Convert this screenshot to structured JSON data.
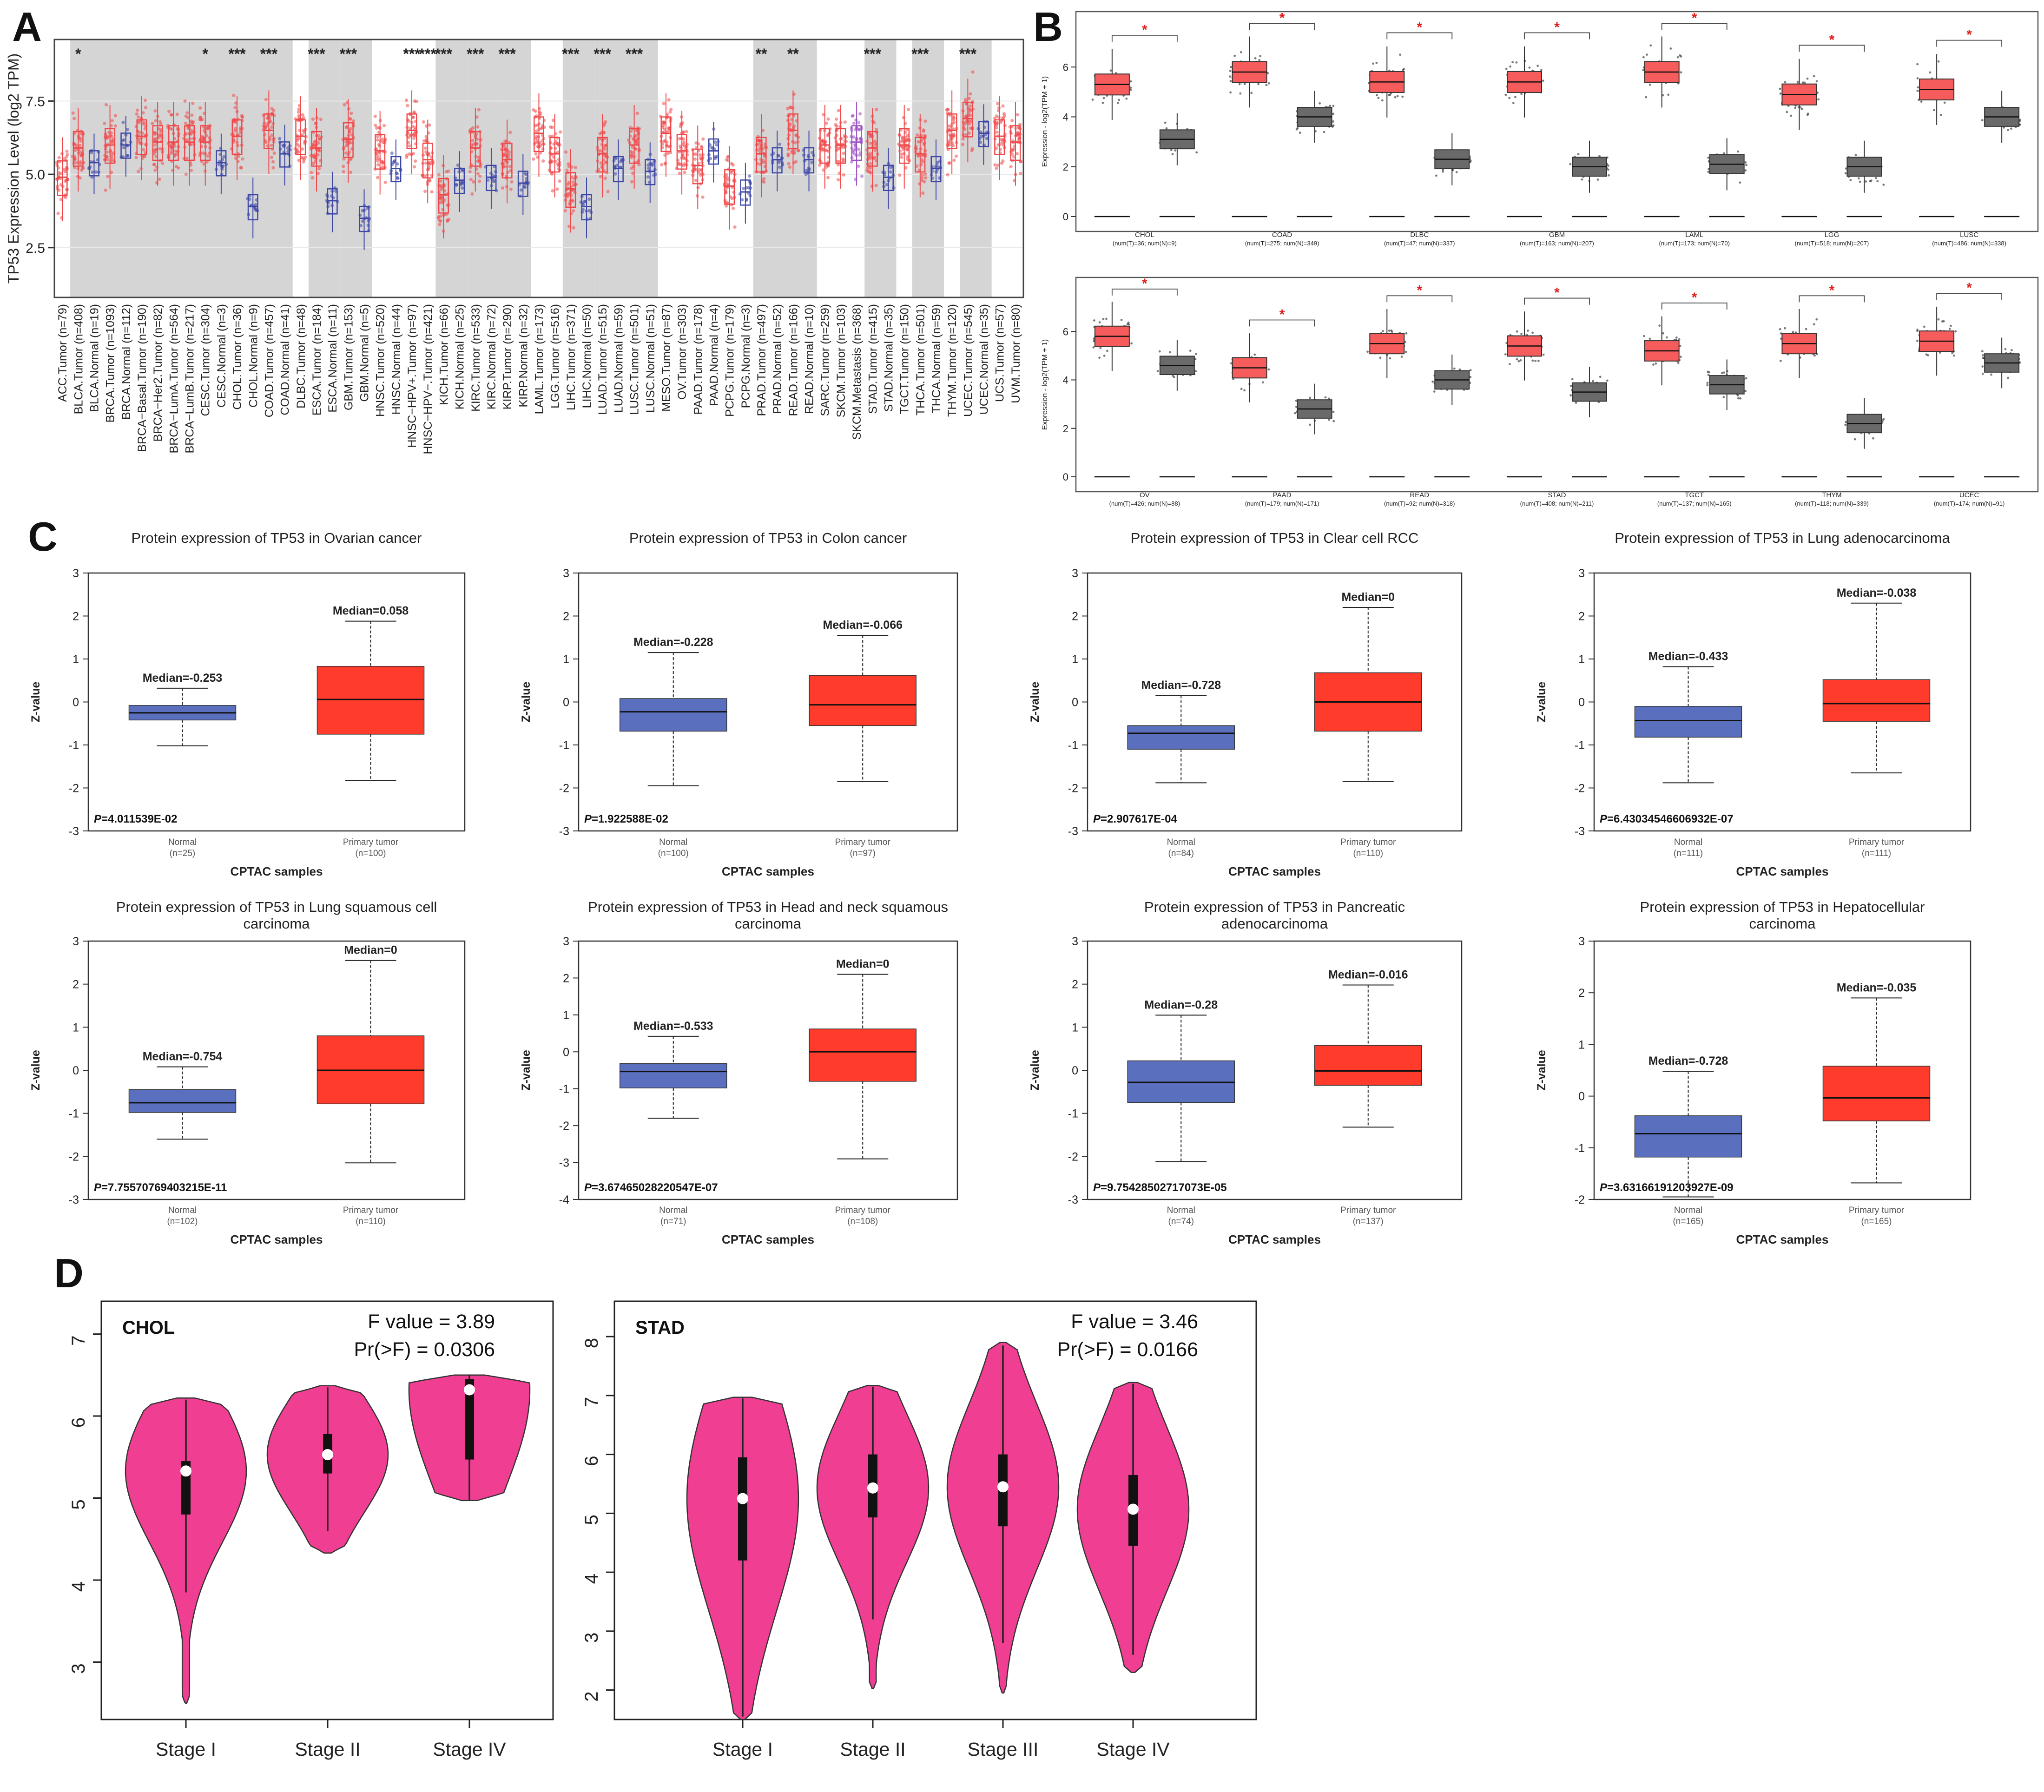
{
  "colors": {
    "tumor": "#f0484a",
    "normal": "#3c46a6",
    "gepiaTumor": "#f65c5c",
    "gepiaNormal": "#6a6a6a",
    "metastasis": "#9a4fc2",
    "cptacNormal": "#5a6fbe",
    "cptacTumor": "#ff3b2c",
    "violin": "#f03e92",
    "shade": "#d5d5d5",
    "sig": "#e02020"
  },
  "panels": {
    "A": {
      "label": "A",
      "chart_data": {
        "type": "box",
        "title": "",
        "ylabel": "TP53 Expression Level (log2 TPM)",
        "ylim": [
          0.8,
          9.6
        ],
        "yticks": [
          {
            "v": 2.5,
            "t": "2.5"
          },
          {
            "v": 5.0,
            "t": "5.0"
          },
          {
            "v": 7.5,
            "t": "7.5"
          }
        ],
        "categories": [
          "ACC.Tumor (n=79)",
          "BLCA.Tumor (n=408)",
          "BLCA.Normal (n=19)",
          "BRCA.Tumor (n=1093)",
          "BRCA.Normal (n=112)",
          "BRCA−Basal.Tumor (n=190)",
          "BRCA−Her2.Tumor (n=82)",
          "BRCA−LumA.Tumor (n=564)",
          "BRCA−LumB.Tumor (n=217)",
          "CESC.Tumor (n=304)",
          "CESC.Normal (n=3)",
          "CHOL.Tumor (n=36)",
          "CHOL.Normal (n=9)",
          "COAD.Tumor (n=457)",
          "COAD.Normal (n=41)",
          "DLBC.Tumor (n=48)",
          "ESCA.Tumor (n=184)",
          "ESCA.Normal (n=11)",
          "GBM.Tumor (n=153)",
          "GBM.Normal (n=5)",
          "HNSC.Tumor (n=520)",
          "HNSC.Normal (n=44)",
          "HNSC−HPV+.Tumor (n=97)",
          "HNSC−HPV−.Tumor (n=421)",
          "KICH.Tumor (n=66)",
          "KICH.Normal (n=25)",
          "KIRC.Tumor (n=533)",
          "KIRC.Normal (n=72)",
          "KIRP.Tumor (n=290)",
          "KIRP.Normal (n=32)",
          "LAML.Tumor (n=173)",
          "LGG.Tumor (n=516)",
          "LIHC.Tumor (n=371)",
          "LIHC.Normal (n=50)",
          "LUAD.Tumor (n=515)",
          "LUAD.Normal (n=59)",
          "LUSC.Tumor (n=501)",
          "LUSC.Normal (n=51)",
          "MESO.Tumor (n=87)",
          "OV.Tumor (n=303)",
          "PAAD.Tumor (n=178)",
          "PAAD.Normal (n=4)",
          "PCPG.Tumor (n=179)",
          "PCPG.Normal (n=3)",
          "PRAD.Tumor (n=497)",
          "PRAD.Normal (n=52)",
          "READ.Tumor (n=166)",
          "READ.Normal (n=10)",
          "SARC.Tumor (n=259)",
          "SKCM.Tumor (n=103)",
          "SKCM.Metastasis (n=368)",
          "STAD.Tumor (n=415)",
          "STAD.Normal (n=35)",
          "TGCT.Tumor (n=150)",
          "THCA.Tumor (n=501)",
          "THCA.Normal (n=59)",
          "THYM.Tumor (n=120)",
          "UCEC.Tumor (n=545)",
          "UCEC.Normal (n=35)",
          "UCS.Tumor (n=57)",
          "UVM.Tumor (n=80)"
        ],
        "kinds": [
          "T",
          "T",
          "N",
          "T",
          "N",
          "T",
          "T",
          "T",
          "T",
          "T",
          "N",
          "T",
          "N",
          "T",
          "N",
          "T",
          "T",
          "N",
          "T",
          "N",
          "T",
          "N",
          "T",
          "T",
          "T",
          "N",
          "T",
          "N",
          "T",
          "N",
          "T",
          "T",
          "T",
          "N",
          "T",
          "N",
          "T",
          "N",
          "T",
          "T",
          "T",
          "N",
          "T",
          "N",
          "T",
          "N",
          "T",
          "N",
          "T",
          "T",
          "M",
          "T",
          "N",
          "T",
          "T",
          "N",
          "T",
          "T",
          "N",
          "T",
          "T"
        ],
        "medians": [
          4.9,
          5.9,
          5.4,
          6.0,
          6.0,
          6.3,
          6.1,
          6.1,
          6.1,
          6.1,
          5.4,
          6.3,
          3.9,
          6.5,
          5.7,
          6.3,
          5.9,
          4.1,
          6.2,
          3.5,
          5.8,
          5.2,
          6.5,
          5.5,
          4.3,
          4.8,
          5.9,
          4.9,
          5.5,
          4.7,
          6.4,
          5.7,
          4.5,
          3.9,
          5.7,
          5.2,
          6.0,
          5.1,
          6.4,
          5.8,
          5.3,
          5.8,
          4.6,
          4.4,
          5.7,
          5.5,
          6.5,
          5.5,
          6.0,
          6.0,
          6.1,
          5.9,
          4.9,
          6.0,
          5.7,
          5.2,
          6.5,
          6.9,
          6.4,
          6.3,
          6.1
        ],
        "significance": [
          "",
          "*",
          "",
          "",
          "",
          "",
          "",
          "",
          "",
          "*",
          "",
          "***",
          "",
          "***",
          "",
          "",
          "***",
          "",
          "***",
          "",
          "",
          "",
          "***",
          "***",
          "***",
          "",
          "***",
          "",
          "***",
          "",
          "",
          "",
          "***",
          "",
          "***",
          "",
          "***",
          "",
          "",
          "",
          "",
          "",
          "",
          "",
          "**",
          "",
          "**",
          "",
          "",
          "",
          "",
          "***",
          "",
          "",
          "***",
          "",
          "",
          "***",
          "",
          "",
          ""
        ],
        "shaded_groups": [
          1,
          3,
          9,
          11,
          13,
          16,
          18,
          22,
          24,
          26,
          28,
          32,
          34,
          36,
          44,
          46,
          50,
          51,
          54,
          57
        ]
      }
    },
    "B": {
      "label": "B",
      "chart_data": [
        {
          "type": "box",
          "ylabel": "Expression - log2(TPM + 1)",
          "ylim": [
            0,
            8
          ],
          "yticks": [
            0,
            2,
            4,
            6
          ],
          "categories": [
            "CHOL",
            "COAD",
            "DLBC",
            "GBM",
            "LAML",
            "LGG",
            "LUSC"
          ],
          "sublabels": [
            "(num(T)=36; num(N)=9)",
            "(num(T)=275; num(N)=349)",
            "(num(T)=47; num(N)=337)",
            "(num(T)=163; num(N)=207)",
            "(num(T)=173; num(N)=70)",
            "(num(T)=518; num(N)=207)",
            "(num(T)=486; num(N)=338)"
          ],
          "tumor_medians": [
            5.3,
            5.8,
            5.4,
            5.4,
            5.8,
            4.9,
            5.1
          ],
          "normal_medians": [
            3.1,
            4.0,
            2.3,
            2.0,
            2.1,
            2.0,
            4.0
          ],
          "significance": [
            "*",
            "*",
            "*",
            "*",
            "*",
            "*",
            "*"
          ]
        },
        {
          "type": "box",
          "ylabel": "Expression - log2(TPM + 1)",
          "ylim": [
            0,
            8
          ],
          "yticks": [
            0,
            2,
            4,
            6
          ],
          "categories": [
            "OV",
            "PAAD",
            "READ",
            "STAD",
            "TGCT",
            "THYM",
            "UCEC"
          ],
          "sublabels": [
            "(num(T)=426; num(N)=88)",
            "(num(T)=179; num(N)=171)",
            "(num(T)=92; num(N)=318)",
            "(num(T)=408; num(N)=211)",
            "(num(T)=137; num(N)=165)",
            "(num(T)=118; num(N)=339)",
            "(num(T)=174; num(N)=91)"
          ],
          "tumor_medians": [
            5.8,
            4.5,
            5.5,
            5.4,
            5.2,
            5.5,
            5.6
          ],
          "normal_medians": [
            4.6,
            2.8,
            4.0,
            3.5,
            3.8,
            2.2,
            4.7
          ],
          "significance": [
            "*",
            "*",
            "*",
            "*",
            "*",
            "*",
            "*"
          ]
        }
      ]
    },
    "C": {
      "label": "C",
      "xlabel": "CPTAC samples",
      "ylabel": "Z-value",
      "normal_label": "Normal",
      "tumor_label": "Primary tumor",
      "chart_data": [
        {
          "type": "box",
          "title": "Protein expression of TP53 in Ovarian cancer",
          "ylim": [
            -3,
            3
          ],
          "normal": {
            "n": "(n=25)",
            "med": -0.253,
            "q1": -0.42,
            "q3": -0.08,
            "wl": -1.02,
            "wh": 0.32,
            "label": "Median=-0.253"
          },
          "tumor": {
            "n": "(n=100)",
            "med": 0.058,
            "q1": -0.75,
            "q3": 0.83,
            "wl": -1.83,
            "wh": 1.88,
            "label": "Median=0.058"
          },
          "p": "4.011539E-02"
        },
        {
          "type": "box",
          "title": "Protein expression of TP53 in Colon cancer",
          "ylim": [
            -3,
            3
          ],
          "normal": {
            "n": "(n=100)",
            "med": -0.228,
            "q1": -0.68,
            "q3": 0.08,
            "wl": -1.95,
            "wh": 1.15,
            "label": "Median=-0.228"
          },
          "tumor": {
            "n": "(n=97)",
            "med": -0.066,
            "q1": -0.55,
            "q3": 0.62,
            "wl": -1.85,
            "wh": 1.55,
            "label": "Median=-0.066"
          },
          "p": "1.922588E-02"
        },
        {
          "type": "box",
          "title": "Protein expression of TP53 in Clear cell RCC",
          "ylim": [
            -3,
            3
          ],
          "normal": {
            "n": "(n=84)",
            "med": -0.728,
            "q1": -1.1,
            "q3": -0.55,
            "wl": -1.88,
            "wh": 0.15,
            "label": "Median=-0.728"
          },
          "tumor": {
            "n": "(n=110)",
            "med": 0.0,
            "q1": -0.68,
            "q3": 0.68,
            "wl": -1.85,
            "wh": 2.2,
            "label": "Median=0"
          },
          "p": "2.907617E-04"
        },
        {
          "type": "box",
          "title": "Protein expression of TP53 in Lung adenocarcinoma",
          "ylim": [
            -3,
            3
          ],
          "normal": {
            "n": "(n=111)",
            "med": -0.433,
            "q1": -0.82,
            "q3": -0.1,
            "wl": -1.88,
            "wh": 0.82,
            "label": "Median=-0.433"
          },
          "tumor": {
            "n": "(n=111)",
            "med": -0.038,
            "q1": -0.45,
            "q3": 0.52,
            "wl": -1.65,
            "wh": 2.3,
            "label": "Median=-0.038"
          },
          "p": "6.43034546606932E-07"
        },
        {
          "type": "box",
          "title": "Protein expression of TP53 in Lung squamous cell carcinoma",
          "ylim": [
            -3,
            3
          ],
          "normal": {
            "n": "(n=102)",
            "med": -0.754,
            "q1": -0.98,
            "q3": -0.45,
            "wl": -1.6,
            "wh": 0.08,
            "label": "Median=-0.754"
          },
          "tumor": {
            "n": "(n=110)",
            "med": 0.0,
            "q1": -0.78,
            "q3": 0.8,
            "wl": -2.15,
            "wh": 2.55,
            "label": "Median=0"
          },
          "p": "7.75570769403215E-11"
        },
        {
          "type": "box",
          "title": "Protein expression of TP53 in Head and neck squamous carcinoma",
          "ylim": [
            -4,
            3
          ],
          "normal": {
            "n": "(n=71)",
            "med": -0.533,
            "q1": -0.98,
            "q3": -0.32,
            "wl": -1.8,
            "wh": 0.42,
            "label": "Median=-0.533"
          },
          "tumor": {
            "n": "(n=108)",
            "med": 0.0,
            "q1": -0.8,
            "q3": 0.62,
            "wl": -2.9,
            "wh": 2.1,
            "label": "Median=0"
          },
          "p": "3.67465028220547E-07"
        },
        {
          "type": "box",
          "title": "Protein expression of TP53 in Pancreatic adenocarcinoma",
          "ylim": [
            -3,
            3
          ],
          "normal": {
            "n": "(n=74)",
            "med": -0.28,
            "q1": -0.75,
            "q3": 0.22,
            "wl": -2.12,
            "wh": 1.28,
            "label": "Median=-0.28"
          },
          "tumor": {
            "n": "(n=137)",
            "med": -0.016,
            "q1": -0.35,
            "q3": 0.58,
            "wl": -1.32,
            "wh": 1.98,
            "label": "Median=-0.016"
          },
          "p": "9.75428502717073E-05"
        },
        {
          "type": "box",
          "title": "Protein expression of TP53 in Hepatocellular carcinoma",
          "ylim": [
            -2,
            3
          ],
          "normal": {
            "n": "(n=165)",
            "med": -0.728,
            "q1": -1.18,
            "q3": -0.38,
            "wl": -1.95,
            "wh": 0.48,
            "label": "Median=-0.728"
          },
          "tumor": {
            "n": "(n=165)",
            "med": -0.035,
            "q1": -0.48,
            "q3": 0.58,
            "wl": -1.68,
            "wh": 1.9,
            "label": "Median=-0.035"
          },
          "p": "3.63166191203927E-09"
        }
      ]
    },
    "D": {
      "label": "D",
      "chart_data": [
        {
          "type": "violin",
          "title": "CHOL",
          "stat1": "F value = 3.89",
          "stat2": "Pr(>F) = 0.0306",
          "ylim": [
            2.3,
            7.4
          ],
          "yticks": [
            3,
            4,
            5,
            6,
            7
          ],
          "categories": [
            "Stage I",
            "Stage II",
            "Stage IV"
          ],
          "violins": [
            {
              "min": 2.5,
              "max": 6.22,
              "med": 5.33,
              "q1": 4.8,
              "q3": 5.45,
              "wl": 3.85,
              "wh": 6.2
            },
            {
              "min": 4.33,
              "max": 6.37,
              "med": 5.53,
              "q1": 5.3,
              "q3": 5.78,
              "wl": 4.6,
              "wh": 6.35
            },
            {
              "min": 4.97,
              "max": 6.5,
              "med": 6.32,
              "q1": 5.47,
              "q3": 6.45,
              "wl": 4.98,
              "wh": 6.5
            }
          ]
        },
        {
          "type": "violin",
          "title": "STAD",
          "stat1": "F value = 3.46",
          "stat2": "Pr(>F) = 0.0166",
          "ylim": [
            1.5,
            8.6
          ],
          "yticks": [
            2,
            3,
            4,
            5,
            6,
            7,
            8
          ],
          "categories": [
            "Stage I",
            "Stage II",
            "Stage III",
            "Stage IV"
          ],
          "violins": [
            {
              "min": 1.5,
              "max": 6.97,
              "med": 5.25,
              "q1": 4.2,
              "q3": 5.95,
              "wl": 1.55,
              "wh": 6.95
            },
            {
              "min": 2.03,
              "max": 7.17,
              "med": 5.43,
              "q1": 4.93,
              "q3": 6.0,
              "wl": 3.2,
              "wh": 7.15
            },
            {
              "min": 1.95,
              "max": 7.9,
              "med": 5.45,
              "q1": 4.78,
              "q3": 6.0,
              "wl": 2.8,
              "wh": 7.85
            },
            {
              "min": 2.3,
              "max": 7.22,
              "med": 5.07,
              "q1": 4.45,
              "q3": 5.65,
              "wl": 2.6,
              "wh": 7.2
            }
          ]
        }
      ]
    }
  }
}
